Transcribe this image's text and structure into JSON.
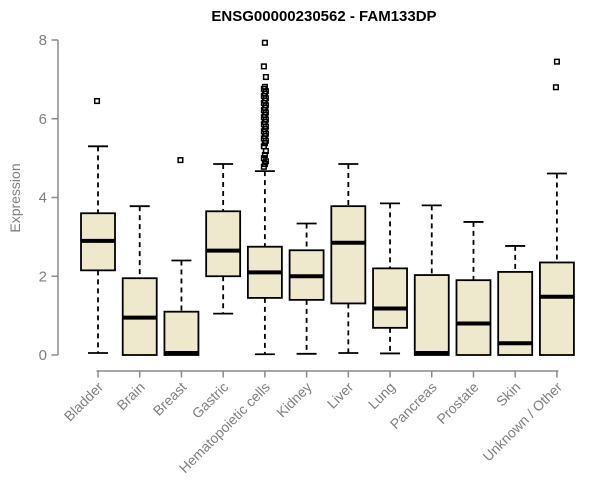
{
  "title": "ENSG00000230562 - FAM133DP",
  "chart_data": {
    "type": "boxplot",
    "title": "ENSG00000230562 - FAM133DP",
    "xlabel": "",
    "ylabel": "Expression",
    "ylim": [
      0,
      8
    ],
    "yticks": [
      "0",
      "2",
      "4",
      "6",
      "8"
    ],
    "grid": false,
    "legend": "none",
    "box_fill_color": "#EEE8CD",
    "box_stroke_color": "#000000",
    "axis_line_color": "#8a8a8a",
    "axis_label_color": "#7f7f7f",
    "categories": [
      "Bladder",
      "Brain",
      "Breast",
      "Gastric",
      "Hematopoietic cells",
      "Kidney",
      "Liver",
      "Lung",
      "Pancreas",
      "Prostate",
      "Skin",
      "Unknown / Other"
    ],
    "series": [
      {
        "name": "Bladder",
        "whisker_low": 0.05,
        "q1": 2.15,
        "median": 2.9,
        "q3": 3.6,
        "whisker_high": 5.3,
        "outliers": [
          6.45
        ]
      },
      {
        "name": "Brain",
        "whisker_low": 0.0,
        "q1": 0.0,
        "median": 0.95,
        "q3": 1.95,
        "whisker_high": 3.78,
        "outliers": []
      },
      {
        "name": "Breast",
        "whisker_low": 0.0,
        "q1": 0.0,
        "median": 0.05,
        "q3": 1.1,
        "whisker_high": 2.4,
        "outliers": [
          4.95
        ]
      },
      {
        "name": "Gastric",
        "whisker_low": 1.05,
        "q1": 2.0,
        "median": 2.65,
        "q3": 3.65,
        "whisker_high": 4.85,
        "outliers": []
      },
      {
        "name": "Hematopoietic cells",
        "whisker_low": 0.02,
        "q1": 1.45,
        "median": 2.1,
        "q3": 2.75,
        "whisker_high": 4.67,
        "outliers": [
          4.78,
          4.85,
          4.92,
          5.0,
          5.08,
          5.18,
          5.3,
          5.38,
          5.44,
          5.5,
          5.56,
          5.62,
          5.68,
          5.74,
          5.8,
          5.86,
          5.92,
          5.98,
          6.04,
          6.1,
          6.16,
          6.22,
          6.28,
          6.34,
          6.4,
          6.46,
          6.52,
          6.58,
          6.64,
          6.7,
          6.76,
          6.81,
          7.06,
          7.33,
          7.93
        ]
      },
      {
        "name": "Kidney",
        "whisker_low": 0.03,
        "q1": 1.4,
        "median": 2.0,
        "q3": 2.66,
        "whisker_high": 3.34,
        "outliers": []
      },
      {
        "name": "Liver",
        "whisker_low": 0.05,
        "q1": 1.31,
        "median": 2.85,
        "q3": 3.78,
        "whisker_high": 4.85,
        "outliers": []
      },
      {
        "name": "Lung",
        "whisker_low": 0.04,
        "q1": 0.69,
        "median": 1.18,
        "q3": 2.2,
        "whisker_high": 3.85,
        "outliers": []
      },
      {
        "name": "Pancreas",
        "whisker_low": 0.0,
        "q1": 0.0,
        "median": 0.05,
        "q3": 2.03,
        "whisker_high": 3.8,
        "outliers": []
      },
      {
        "name": "Prostate",
        "whisker_low": 0.0,
        "q1": 0.0,
        "median": 0.8,
        "q3": 1.9,
        "whisker_high": 3.38,
        "outliers": []
      },
      {
        "name": "Skin",
        "whisker_low": 0.0,
        "q1": 0.0,
        "median": 0.3,
        "q3": 2.11,
        "whisker_high": 2.77,
        "outliers": []
      },
      {
        "name": "Unknown / Other",
        "whisker_low": 0.0,
        "q1": 0.0,
        "median": 1.48,
        "q3": 2.35,
        "whisker_high": 4.61,
        "outliers": [
          6.8,
          7.45
        ]
      }
    ]
  }
}
